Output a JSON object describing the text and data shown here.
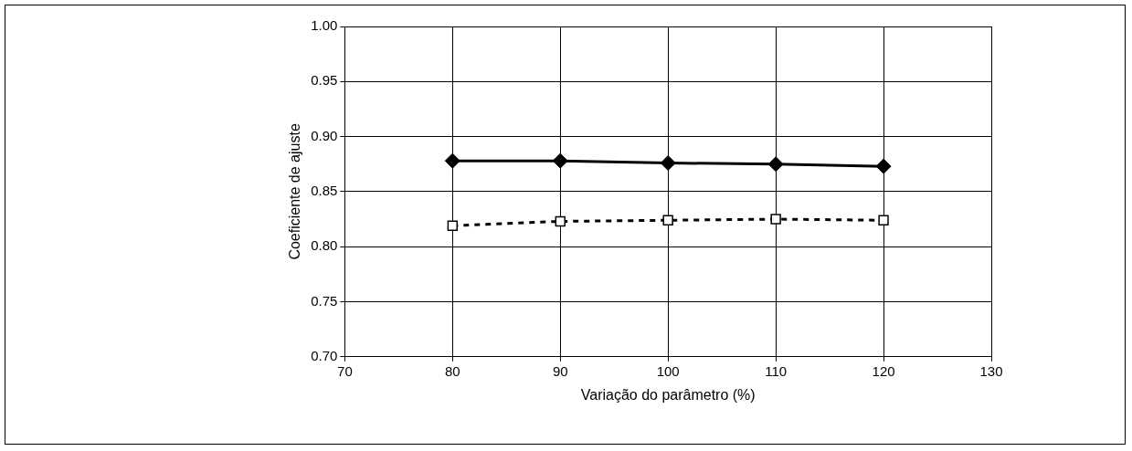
{
  "chart_data": {
    "type": "line",
    "xlabel": "Variação do parâmetro (%)",
    "ylabel": "Coeficiente de ajuste",
    "x": [
      80,
      90,
      100,
      110,
      120
    ],
    "series": [
      {
        "color": "#000000",
        "values": [
          0.878,
          0.878,
          0.876,
          0.875,
          0.873
        ],
        "marker": "diamond",
        "line_style": "solid"
      },
      {
        "color": "#000000",
        "values": [
          0.819,
          0.823,
          0.824,
          0.825,
          0.824
        ],
        "marker": "square",
        "line_style": "dashed"
      }
    ],
    "xlim": [
      70,
      130
    ],
    "xticks": [
      70,
      80,
      90,
      100,
      110,
      120,
      130
    ],
    "ylim": [
      0.7,
      1
    ],
    "yticks": [
      {
        "value": 0.7,
        "label": "0.70"
      },
      0.75,
      {
        "value": 0.8,
        "label": "0.80"
      },
      0.85,
      {
        "value": 0.9,
        "label": "0.90"
      },
      0.95,
      {
        "value": 1,
        "label": "1.00"
      }
    ],
    "grid": true,
    "legend": false
  }
}
